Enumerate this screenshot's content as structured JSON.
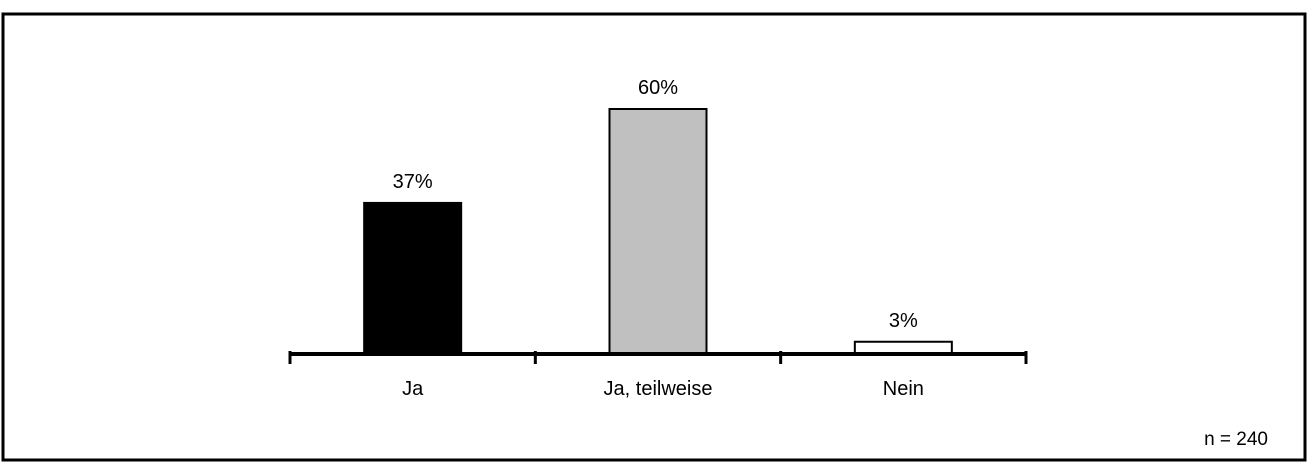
{
  "chart_data": {
    "type": "bar",
    "title": "",
    "xlabel": "",
    "ylabel": "",
    "categories": [
      "Ja",
      "Ja, teilweise",
      "Nein"
    ],
    "values": [
      37,
      60,
      3
    ],
    "value_labels": [
      "37%",
      "60%",
      "3%"
    ],
    "bar_colors": [
      "#000000",
      "#c0c0c0",
      "#ffffff"
    ],
    "ylim": [
      0,
      100
    ],
    "grid": false,
    "legend": "none",
    "note": "n = 240"
  }
}
